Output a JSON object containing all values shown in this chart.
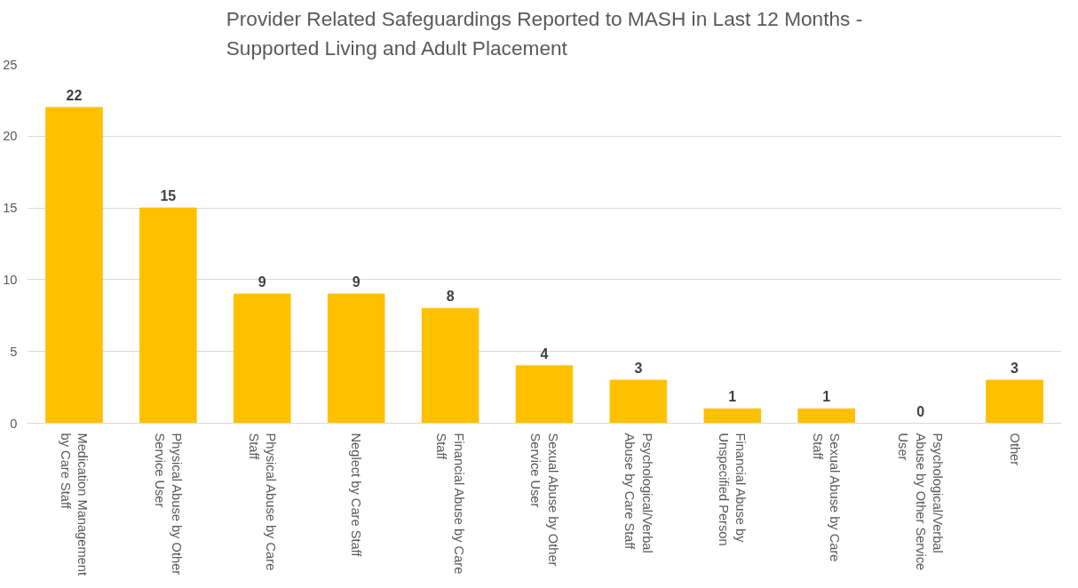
{
  "chart_data": {
    "type": "bar",
    "title": "Provider Related Safeguardings Reported to MASH in Last 12 Months -\nSupported Living and Adult Placement",
    "categories": [
      "Medication Management\nby Care Staff",
      "Physical Abuse by Other\nService User",
      "Physical Abuse by Care\nStaff",
      "Neglect by Care Staff",
      "Financial Abuse by Care\nStaff",
      "Sexual Abuse by Other\nService User",
      "Psychological/Verbal\nAbuse by Care Staff",
      "Financial Abuse by\nUnspecified Person",
      "Sexual Abuse by Care\nStaff",
      "Psychological/Verbal\nAbuse by Other Service\nUser",
      "Other"
    ],
    "values": [
      22,
      15,
      9,
      9,
      8,
      4,
      3,
      1,
      1,
      0,
      3
    ],
    "color": "#ffc000",
    "ylim": [
      0,
      25
    ],
    "yticks": [
      0,
      5,
      10,
      15,
      20,
      25
    ],
    "grid": "y",
    "data_labels": true
  }
}
